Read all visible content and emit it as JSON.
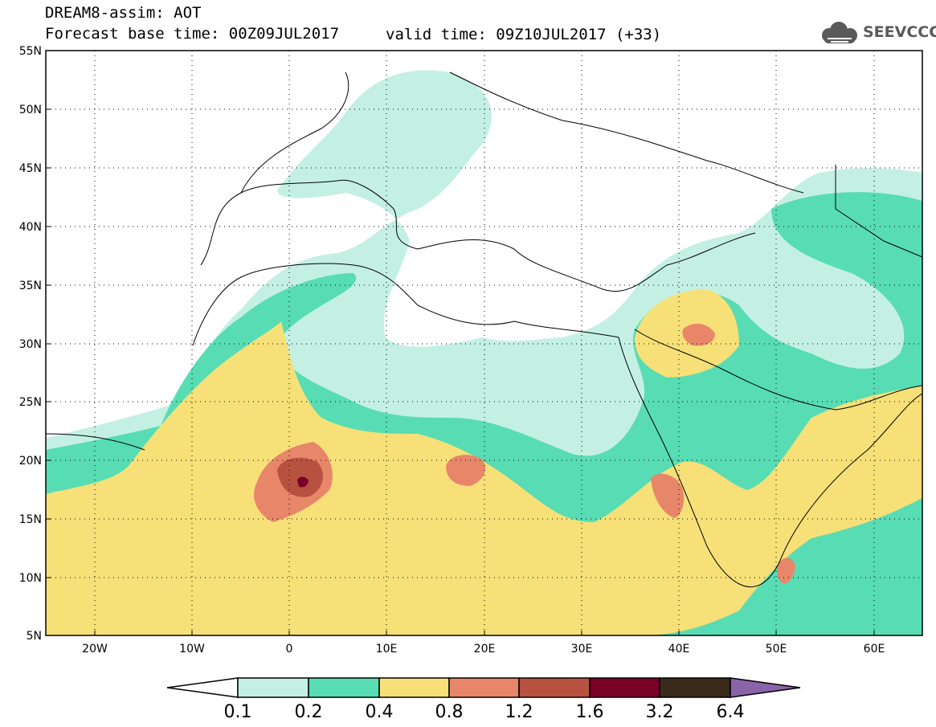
{
  "header": {
    "title": "DREAM8-assim: AOT",
    "base_time": "Forecast base time: 00Z09JUL2017",
    "valid_time": "valid time: 09Z10JUL2017 (+33)",
    "logo_text": "SEEVCCC"
  },
  "map": {
    "projection": "lat-lon",
    "lon_range": [
      -25,
      65
    ],
    "lat_range": [
      5,
      55
    ],
    "lat_labels": [
      "55N",
      "50N",
      "45N",
      "40N",
      "35N",
      "30N",
      "25N",
      "20N",
      "15N",
      "10N",
      "5N"
    ],
    "lon_labels": [
      "20W",
      "10W",
      "0",
      "10E",
      "20E",
      "30E",
      "40E",
      "50E",
      "60E"
    ],
    "gridlines": "dotted"
  },
  "legend": {
    "levels": [
      "0.1",
      "0.2",
      "0.4",
      "0.8",
      "1.2",
      "1.6",
      "3.2",
      "6.4"
    ],
    "colors": [
      "#ffffff",
      "#c4f0e4",
      "#58dcb4",
      "#f7e078",
      "#e8866a",
      "#b85240",
      "#7a0028",
      "#3a2a1c",
      "#8a64a8"
    ]
  }
}
